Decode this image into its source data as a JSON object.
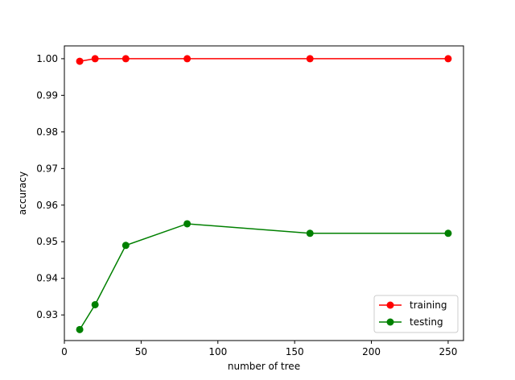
{
  "chart_data": {
    "type": "line",
    "title": "",
    "xlabel": "number of tree",
    "ylabel": "accuracy",
    "xlim": [
      0,
      260
    ],
    "ylim": [
      0.923,
      1.0035
    ],
    "xticks": [
      0,
      50,
      100,
      150,
      200,
      250
    ],
    "yticks": [
      0.93,
      0.94,
      0.95,
      0.96,
      0.97,
      0.98,
      0.99,
      1.0
    ],
    "ytick_labels": [
      "0.93",
      "0.94",
      "0.95",
      "0.96",
      "0.97",
      "0.98",
      "0.99",
      "1.00"
    ],
    "x": [
      10,
      20,
      40,
      80,
      160,
      250
    ],
    "grid": false,
    "legend_position": "lower-right",
    "series": [
      {
        "name": "training",
        "color": "#ff0000",
        "values": [
          0.9993,
          1.0,
          1.0,
          1.0,
          1.0,
          1.0
        ]
      },
      {
        "name": "testing",
        "color": "#008000",
        "values": [
          0.926,
          0.9328,
          0.949,
          0.9549,
          0.9523,
          0.9523
        ]
      }
    ]
  }
}
